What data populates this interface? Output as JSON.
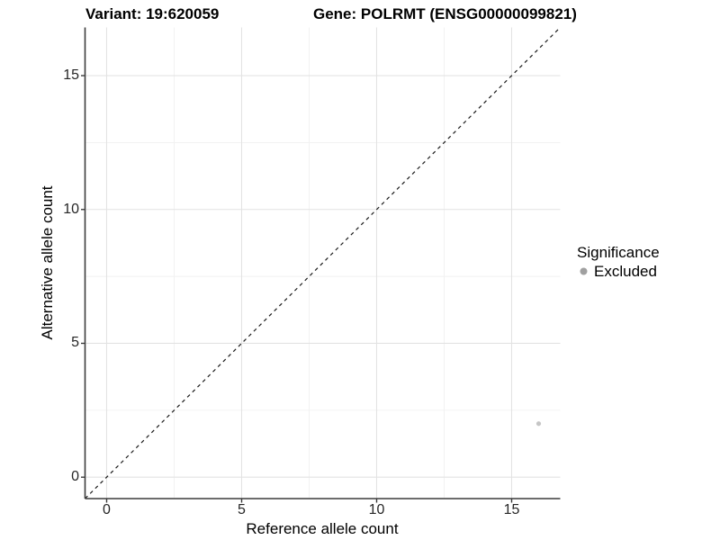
{
  "title": {
    "variant": "Variant: 19:620059",
    "gene": "Gene: POLRMT (ENSG00000099821)"
  },
  "chart_data": {
    "type": "scatter",
    "xlabel": "Reference allele count",
    "ylabel": "Alternative allele count",
    "xlim": [
      -0.8,
      16.8
    ],
    "ylim": [
      -0.8,
      16.8
    ],
    "x_ticks": [
      0,
      5,
      10,
      15
    ],
    "y_ticks": [
      0,
      5,
      10,
      15
    ],
    "x_minor_ticks": [
      2.5,
      7.5,
      12.5
    ],
    "y_minor_ticks": [
      2.5,
      7.5,
      12.5
    ],
    "grid": true,
    "identity_line": {
      "style": "dashed",
      "from": [
        -0.8,
        -0.8
      ],
      "to": [
        16.8,
        16.8
      ]
    },
    "series": [
      {
        "name": "Excluded",
        "color": "#c6c6c6",
        "points": [
          {
            "x": 16,
            "y": 2
          }
        ]
      }
    ],
    "legend": {
      "title": "Significance",
      "position": "right",
      "entries": [
        {
          "label": "Excluded",
          "color": "#a0a0a0"
        }
      ]
    }
  },
  "colors": {
    "background": "#ffffff",
    "grid_major": "#e3e3e3",
    "grid_minor": "#f1f1f1",
    "axis_line": "#3c3c3c",
    "tick_label": "#262626",
    "identity_line": "#1a1a1a"
  }
}
